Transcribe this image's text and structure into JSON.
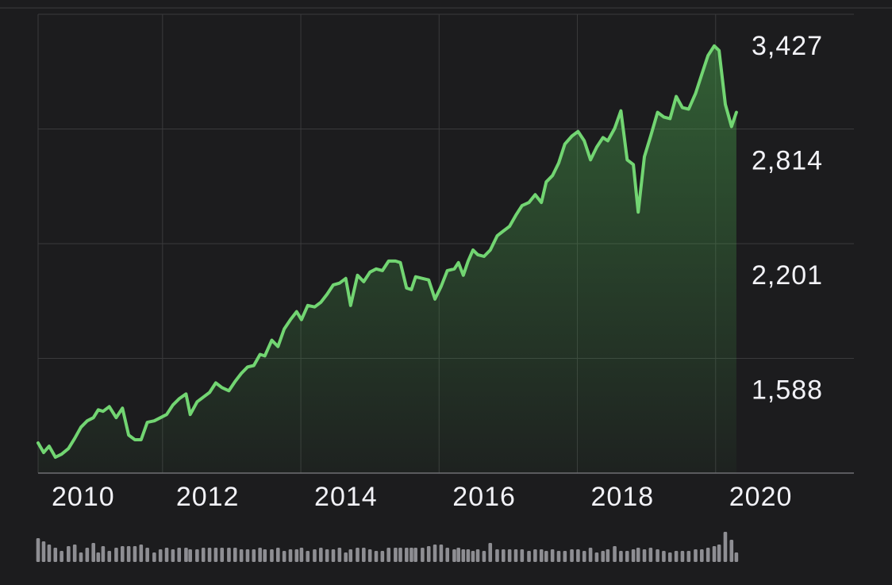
{
  "chart_data": {
    "type": "line",
    "x": [
      2010.2,
      2010.28,
      2010.36,
      2010.45,
      2010.54,
      2010.64,
      2010.73,
      2010.82,
      2010.91,
      2011.0,
      2011.07,
      2011.14,
      2011.23,
      2011.33,
      2011.42,
      2011.51,
      2011.6,
      2011.69,
      2011.78,
      2011.88,
      2011.97,
      2012.06,
      2012.15,
      2012.24,
      2012.34,
      2012.4,
      2012.5,
      2012.59,
      2012.68,
      2012.77,
      2012.86,
      2012.96,
      2013.05,
      2013.14,
      2013.23,
      2013.32,
      2013.41,
      2013.48,
      2013.58,
      2013.67,
      2013.76,
      2013.85,
      2013.94,
      2014.01,
      2014.1,
      2014.2,
      2014.29,
      2014.38,
      2014.47,
      2014.56,
      2014.65,
      2014.72,
      2014.82,
      2014.91,
      2015.0,
      2015.09,
      2015.18,
      2015.27,
      2015.37,
      2015.44,
      2015.53,
      2015.6,
      2015.66,
      2015.76,
      2015.85,
      2015.94,
      2016.03,
      2016.12,
      2016.22,
      2016.28,
      2016.35,
      2016.42,
      2016.49,
      2016.56,
      2016.65,
      2016.74,
      2016.84,
      2016.93,
      2017.02,
      2017.11,
      2017.2,
      2017.3,
      2017.39,
      2017.48,
      2017.55,
      2017.64,
      2017.73,
      2017.82,
      2017.92,
      2018.01,
      2018.1,
      2018.19,
      2018.28,
      2018.37,
      2018.44,
      2018.54,
      2018.63,
      2018.72,
      2018.81,
      2018.88,
      2018.97,
      2019.06,
      2019.16,
      2019.25,
      2019.34,
      2019.43,
      2019.52,
      2019.61,
      2019.71,
      2019.8,
      2019.89,
      2019.98,
      2020.05,
      2020.14,
      2020.23,
      2020.3
    ],
    "series": [
      {
        "color": "#72d572",
        "values": [
          1136,
          1085,
          1119,
          1060,
          1076,
          1106,
          1161,
          1220,
          1254,
          1271,
          1313,
          1305,
          1330,
          1271,
          1322,
          1178,
          1153,
          1153,
          1246,
          1254,
          1271,
          1288,
          1339,
          1372,
          1398,
          1288,
          1356,
          1381,
          1406,
          1457,
          1432,
          1415,
          1465,
          1508,
          1542,
          1550,
          1609,
          1601,
          1685,
          1651,
          1745,
          1795,
          1838,
          1795,
          1871,
          1863,
          1888,
          1931,
          1981,
          1990,
          2015,
          1871,
          2032,
          1998,
          2049,
          2066,
          2057,
          2108,
          2108,
          2100,
          1964,
          1956,
          2024,
          2015,
          2007,
          1905,
          1973,
          2057,
          2066,
          2100,
          2032,
          2108,
          2167,
          2142,
          2133,
          2167,
          2243,
          2269,
          2294,
          2353,
          2404,
          2421,
          2463,
          2421,
          2531,
          2565,
          2632,
          2734,
          2776,
          2801,
          2751,
          2649,
          2717,
          2768,
          2751,
          2818,
          2911,
          2649,
          2624,
          2370,
          2666,
          2776,
          2903,
          2878,
          2869,
          2988,
          2928,
          2920,
          3004,
          3106,
          3207,
          3258,
          3233,
          2945,
          2827,
          2903
        ]
      }
    ],
    "volume": {
      "color": "#8e8e93",
      "values": [
        30,
        26,
        22,
        18,
        14,
        20,
        22,
        12,
        18,
        24,
        12,
        20,
        14,
        18,
        20,
        20,
        20,
        22,
        18,
        12,
        16,
        18,
        16,
        18,
        18,
        16,
        16,
        18,
        18,
        18,
        18,
        18,
        18,
        16,
        16,
        16,
        18,
        16,
        16,
        18,
        14,
        16,
        16,
        18,
        14,
        16,
        18,
        16,
        16,
        18,
        12,
        16,
        18,
        18,
        16,
        14,
        14,
        18,
        18,
        18,
        18,
        18,
        18,
        18,
        20,
        22,
        22,
        18,
        16,
        18,
        16,
        16,
        14,
        16,
        14,
        24,
        16,
        16,
        16,
        16,
        16,
        14,
        16,
        16,
        14,
        16,
        14,
        14,
        16,
        16,
        14,
        18,
        12,
        14,
        16,
        20,
        14,
        14,
        16,
        18,
        16,
        18,
        16,
        14,
        12,
        14,
        14,
        14,
        16,
        16,
        18,
        20,
        22,
        38,
        28,
        12
      ]
    },
    "xlim": [
      2010.2,
      2022.0
    ],
    "xticks": [
      2010,
      2012,
      2014,
      2016,
      2018,
      2020
    ],
    "ylim": [
      975,
      3427
    ],
    "yticks": [
      {
        "value": 1588,
        "label": "1,588"
      },
      {
        "value": 2201,
        "label": "2,201"
      },
      {
        "value": 2814,
        "label": "2,814"
      },
      {
        "value": 3427,
        "label": "3,427"
      }
    ],
    "grid": true
  }
}
